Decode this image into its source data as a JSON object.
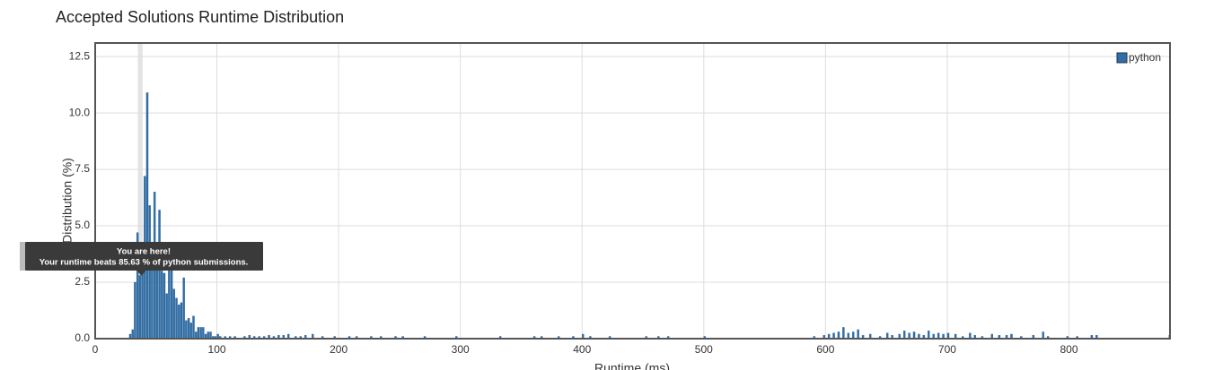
{
  "chart_data": {
    "type": "bar",
    "title": "Accepted Solutions Runtime Distribution",
    "xlabel": "Runtime (ms)",
    "ylabel": "Distribution (%)",
    "series": [
      {
        "name": "python",
        "color": "#2f6ea7",
        "x": [
          28,
          30,
          32,
          34,
          36,
          38,
          40,
          42,
          44,
          46,
          48,
          50,
          52,
          54,
          56,
          58,
          60,
          62,
          64,
          66,
          68,
          70,
          72,
          74,
          76,
          78,
          80,
          82,
          84,
          86,
          88,
          90,
          92,
          94,
          96,
          98,
          100,
          102,
          106,
          110,
          114,
          122,
          126,
          130,
          134,
          138,
          142,
          146,
          150,
          154,
          158,
          164,
          168,
          172,
          178,
          186,
          196,
          208,
          214,
          226,
          234,
          246,
          252,
          270,
          296,
          332,
          360,
          366,
          380,
          392,
          400,
          406,
          422,
          452,
          462,
          470,
          500,
          590,
          598,
          602,
          606,
          610,
          614,
          618,
          622,
          626,
          630,
          636,
          644,
          650,
          654,
          660,
          664,
          668,
          672,
          676,
          680,
          684,
          688,
          692,
          696,
          700,
          706,
          712,
          718,
          722,
          728,
          736,
          742,
          748,
          752,
          760,
          770,
          778,
          782,
          798,
          806,
          818,
          822,
          882
        ],
        "values": [
          0.2,
          0.4,
          2.5,
          4.7,
          2.8,
          3.0,
          7.2,
          10.9,
          5.9,
          4.0,
          6.5,
          3.3,
          5.7,
          3.0,
          2.9,
          2.0,
          3.2,
          4.2,
          2.2,
          1.8,
          1.5,
          1.6,
          2.7,
          0.8,
          0.9,
          0.7,
          1.0,
          0.3,
          0.5,
          0.5,
          0.5,
          0.2,
          0.3,
          0.3,
          0.1,
          0.1,
          0.2,
          0.1,
          0.1,
          0.1,
          0.1,
          0.1,
          0.15,
          0.1,
          0.1,
          0.1,
          0.15,
          0.1,
          0.15,
          0.15,
          0.2,
          0.1,
          0.1,
          0.15,
          0.2,
          0.1,
          0.1,
          0.1,
          0.1,
          0.1,
          0.1,
          0.1,
          0.1,
          0.1,
          0.1,
          0.1,
          0.1,
          0.1,
          0.1,
          0.1,
          0.2,
          0.1,
          0.1,
          0.1,
          0.1,
          0.1,
          0.1,
          0.1,
          0.15,
          0.2,
          0.25,
          0.3,
          0.5,
          0.25,
          0.3,
          0.4,
          0.15,
          0.2,
          0.1,
          0.25,
          0.15,
          0.2,
          0.35,
          0.25,
          0.3,
          0.2,
          0.15,
          0.35,
          0.2,
          0.25,
          0.2,
          0.25,
          0.2,
          0.1,
          0.25,
          0.15,
          0.1,
          0.2,
          0.15,
          0.15,
          0.2,
          0.1,
          0.15,
          0.3,
          0.1,
          0.1,
          0.1,
          0.15,
          0.15,
          0.15
        ]
      }
    ],
    "bin_width": 2,
    "highlight_x": 37,
    "xlim": [
      0,
      883
    ],
    "ylim": [
      0,
      13.1
    ],
    "xticks": [
      0,
      100,
      200,
      300,
      400,
      500,
      600,
      700,
      800
    ],
    "yticks": [
      {
        "value": 0,
        "label": "0.0"
      },
      2.5,
      {
        "value": 5,
        "label": "5.0"
      },
      7.5,
      {
        "value": 10,
        "label": "10.0"
      },
      12.5
    ],
    "grid": true,
    "legend": "top-right",
    "annotation": {
      "title": "You are here!",
      "text": "Your runtime beats 85.63 % of python submissions."
    }
  }
}
